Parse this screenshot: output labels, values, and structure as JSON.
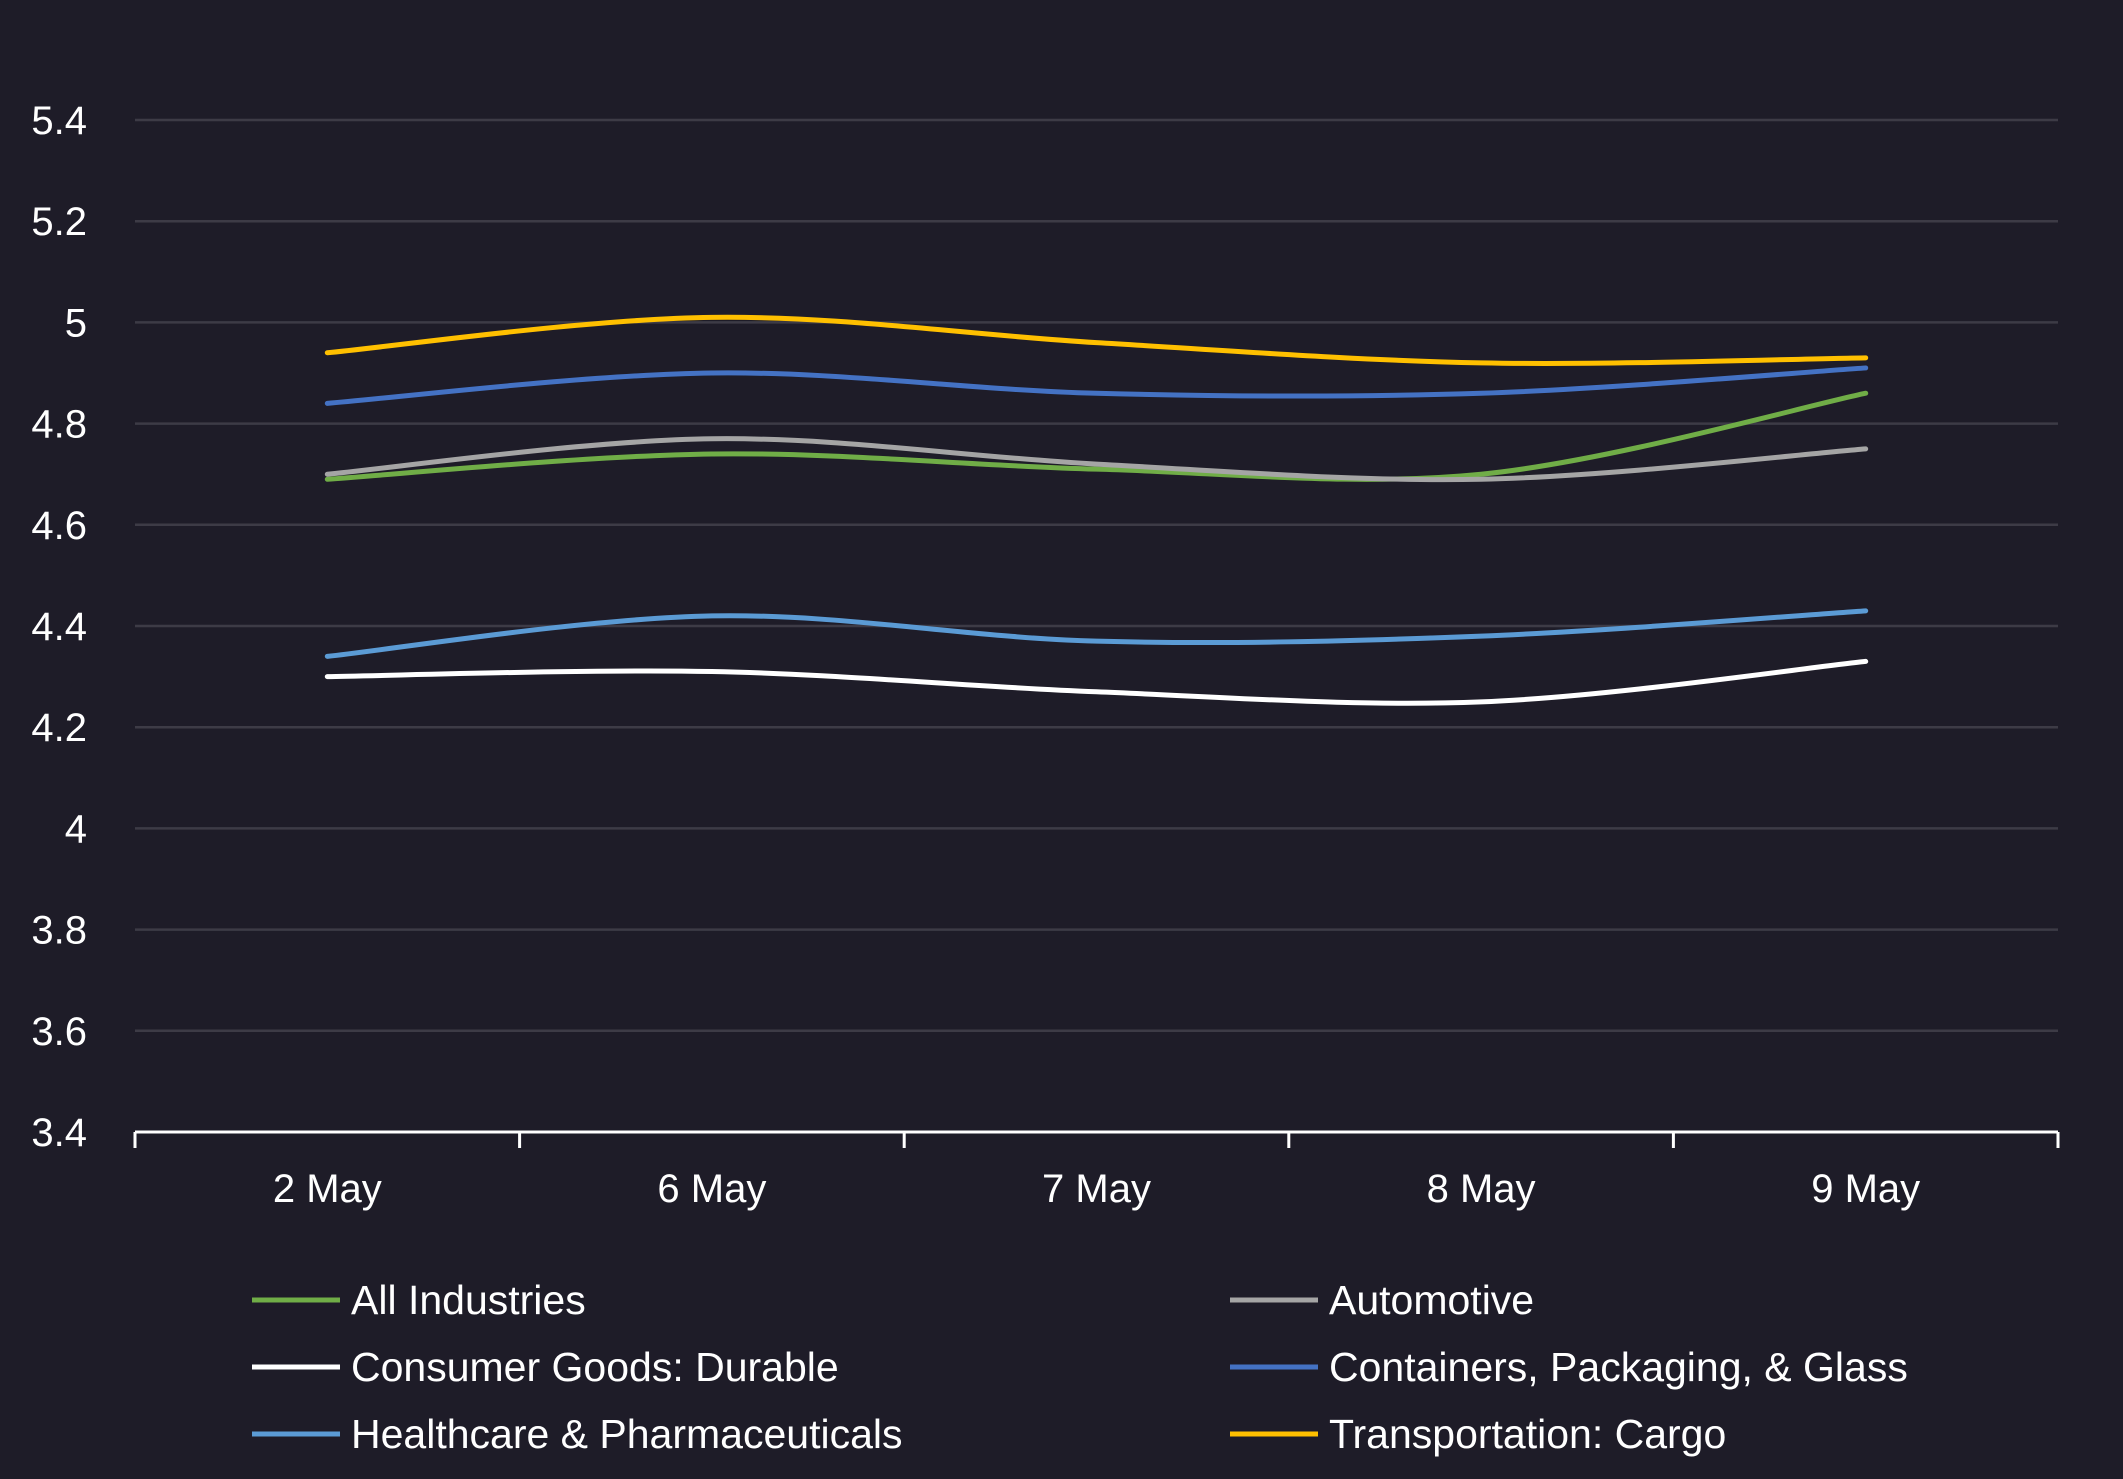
{
  "chart_data": {
    "type": "line",
    "title": "",
    "xlabel": "",
    "ylabel": "",
    "categories": [
      "2 May",
      "6 May",
      "7 May",
      "8 May",
      "9 May"
    ],
    "ylim": [
      3.4,
      5.4
    ],
    "yticks": [
      "5.4",
      "5.2",
      "5",
      "4.8",
      "4.6",
      "4.4",
      "4.2",
      "4",
      "3.8",
      "3.6",
      "3.4"
    ],
    "grid": true,
    "smooth": true,
    "legend": "bottom",
    "series": [
      {
        "name": "All Industries",
        "color": "#70ad47",
        "values": [
          4.69,
          4.74,
          4.71,
          4.7,
          4.86
        ]
      },
      {
        "name": "Automotive",
        "color": "#a5a5a5",
        "values": [
          4.7,
          4.77,
          4.72,
          4.69,
          4.75
        ]
      },
      {
        "name": "Consumer Goods: Durable",
        "color": "#ffffff",
        "values": [
          4.3,
          4.31,
          4.27,
          4.25,
          4.33
        ]
      },
      {
        "name": "Containers, Packaging, & Glass",
        "color": "#4472c4",
        "values": [
          4.84,
          4.9,
          4.86,
          4.86,
          4.91
        ]
      },
      {
        "name": "Healthcare & Pharmaceuticals",
        "color": "#5b9bd5",
        "values": [
          4.34,
          4.42,
          4.37,
          4.38,
          4.43
        ]
      },
      {
        "name": "Transportation: Cargo",
        "color": "#ffc000",
        "values": [
          4.94,
          5.01,
          4.96,
          4.92,
          4.93
        ]
      }
    ]
  }
}
